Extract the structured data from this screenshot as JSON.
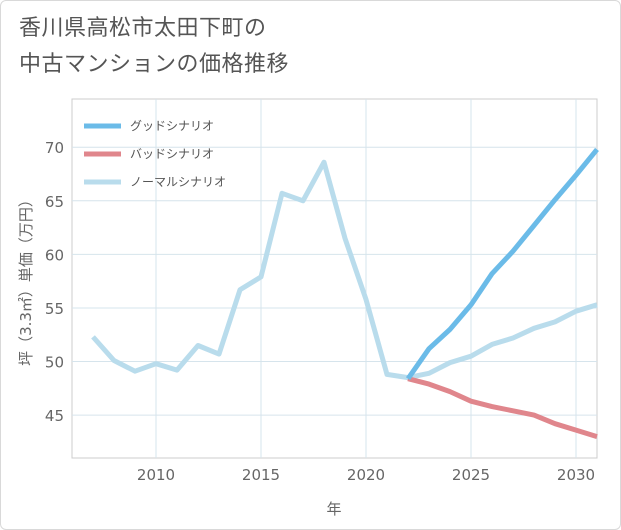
{
  "title_line1": "香川県高松市太田下町の",
  "title_line2": "中古マンションの価格推移",
  "chart_data": {
    "type": "line",
    "title": "香川県高松市太田下町の中古マンションの価格推移",
    "xlabel": "年",
    "ylabel": "坪（3.3㎡）単価（万円）",
    "xlim": [
      2006,
      2031
    ],
    "ylim": [
      41,
      74.5
    ],
    "xticks": [
      2010,
      2015,
      2020,
      2025,
      2030
    ],
    "yticks": [
      45,
      50,
      55,
      60,
      65,
      70
    ],
    "legend_position": "top-left",
    "series": [
      {
        "name": "グッドシナリオ",
        "color": "#6bbbe8",
        "x": [
          2022,
          2023,
          2024,
          2025,
          2026,
          2027,
          2028,
          2029,
          2030,
          2031
        ],
        "values": [
          48.4,
          51.2,
          53.0,
          55.3,
          58.2,
          60.3,
          62.7,
          65.1,
          67.4,
          69.8
        ]
      },
      {
        "name": "バッドシナリオ",
        "color": "#e0868c",
        "x": [
          2022,
          2023,
          2024,
          2025,
          2026,
          2027,
          2028,
          2029,
          2030,
          2031
        ],
        "values": [
          48.4,
          47.9,
          47.2,
          46.3,
          45.8,
          45.4,
          45.0,
          44.2,
          43.6,
          43.0
        ]
      },
      {
        "name": "ノーマルシナリオ",
        "color": "#b9dcec",
        "x": [
          2007,
          2008,
          2009,
          2010,
          2011,
          2012,
          2013,
          2014,
          2015,
          2016,
          2017,
          2018,
          2019,
          2020,
          2021,
          2022,
          2023,
          2024,
          2025,
          2026,
          2027,
          2028,
          2029,
          2030,
          2031
        ],
        "values": [
          52.3,
          50.1,
          49.1,
          49.8,
          49.2,
          51.5,
          50.7,
          56.7,
          57.9,
          65.7,
          65.0,
          68.6,
          61.5,
          55.8,
          48.8,
          48.5,
          48.9,
          49.9,
          50.5,
          51.6,
          52.2,
          53.1,
          53.7,
          54.7,
          55.3
        ]
      }
    ]
  }
}
